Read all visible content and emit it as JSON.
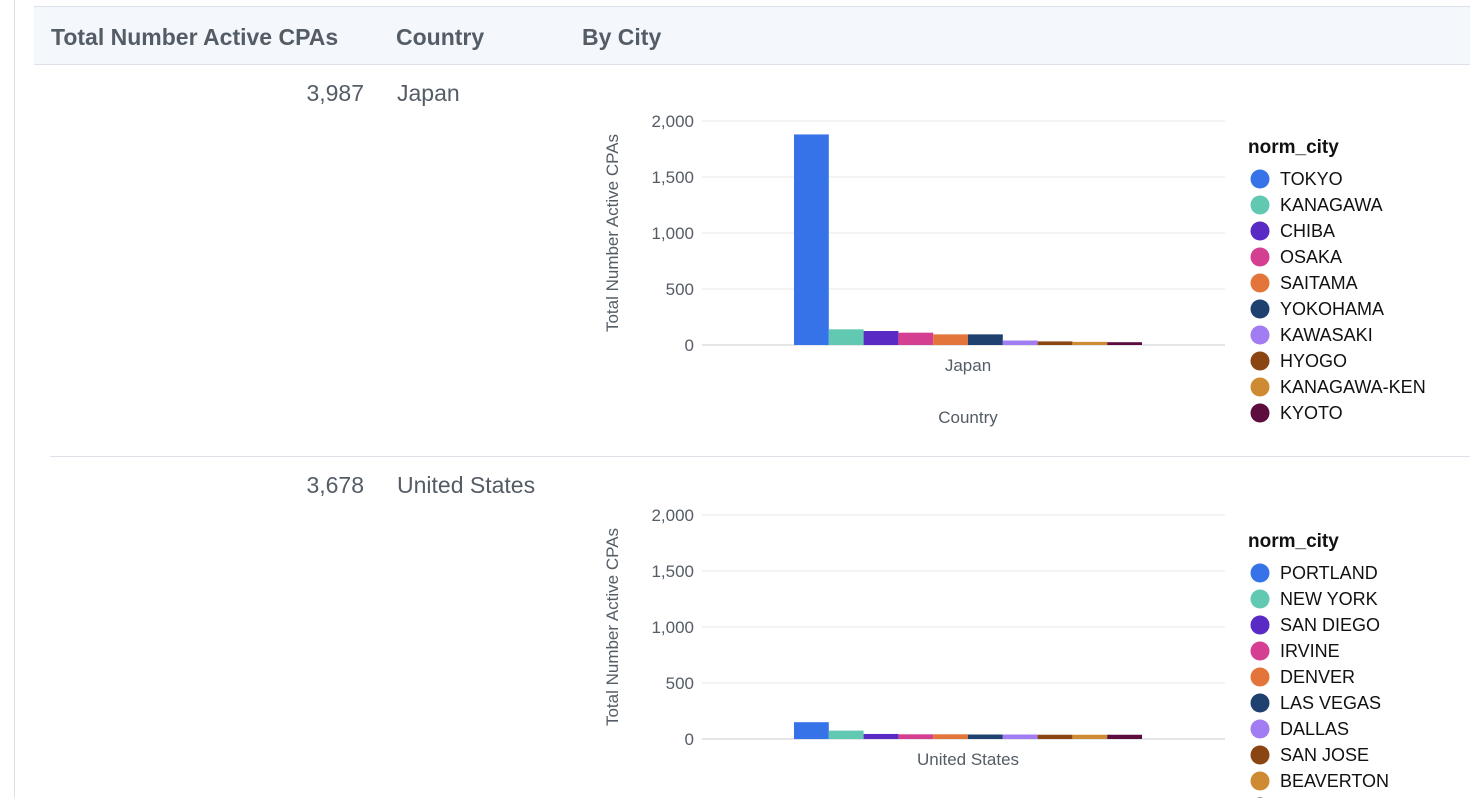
{
  "table": {
    "headers": [
      "Total Number Active CPAs",
      "Country",
      "By City"
    ],
    "rows": [
      {
        "count": "3,987",
        "country": "Japan"
      },
      {
        "count": "3,678",
        "country": "United States"
      }
    ]
  },
  "chart_data": [
    {
      "type": "bar",
      "title": "",
      "xlabel": "Country",
      "ylabel": "Total Number Active CPAs",
      "categories": [
        "Japan"
      ],
      "ylim": [
        0,
        2000
      ],
      "yticks": [
        0,
        500,
        1000,
        1500,
        2000
      ],
      "ytick_labels": [
        "0",
        "500",
        "1,000",
        "1,500",
        "2,000"
      ],
      "grid": true,
      "legend_title": "norm_city",
      "legend_position": "right",
      "series": [
        {
          "name": "TOKYO",
          "values": [
            1880
          ],
          "color": "#3673e8"
        },
        {
          "name": "KANAGAWA",
          "values": [
            140
          ],
          "color": "#61c8b1"
        },
        {
          "name": "CHIBA",
          "values": [
            125
          ],
          "color": "#5a2ac4"
        },
        {
          "name": "OSAKA",
          "values": [
            110
          ],
          "color": "#d43f92"
        },
        {
          "name": "SAITAMA",
          "values": [
            95
          ],
          "color": "#e3743a"
        },
        {
          "name": "YOKOHAMA",
          "values": [
            95
          ],
          "color": "#1f4170"
        },
        {
          "name": "KAWASAKI",
          "values": [
            40
          ],
          "color": "#a27cf2"
        },
        {
          "name": "HYOGO",
          "values": [
            32
          ],
          "color": "#8a4512"
        },
        {
          "name": "KANAGAWA-KEN",
          "values": [
            28
          ],
          "color": "#cf8b33"
        },
        {
          "name": "KYOTO",
          "values": [
            25
          ],
          "color": "#5c0d3d"
        }
      ]
    },
    {
      "type": "bar",
      "title": "",
      "xlabel": "",
      "ylabel": "Total Number Active CPAs",
      "categories": [
        "United States"
      ],
      "ylim": [
        0,
        2000
      ],
      "yticks": [
        0,
        500,
        1000,
        1500,
        2000
      ],
      "ytick_labels": [
        "0",
        "500",
        "1,000",
        "1,500",
        "2,000"
      ],
      "grid": true,
      "legend_title": "norm_city",
      "legend_position": "right",
      "series": [
        {
          "name": "PORTLAND",
          "values": [
            150
          ],
          "color": "#3673e8"
        },
        {
          "name": "NEW YORK",
          "values": [
            75
          ],
          "color": "#61c8b1"
        },
        {
          "name": "SAN DIEGO",
          "values": [
            45
          ],
          "color": "#5a2ac4"
        },
        {
          "name": "IRVINE",
          "values": [
            42
          ],
          "color": "#d43f92"
        },
        {
          "name": "DENVER",
          "values": [
            42
          ],
          "color": "#e3743a"
        },
        {
          "name": "LAS VEGAS",
          "values": [
            40
          ],
          "color": "#1f4170"
        },
        {
          "name": "DALLAS",
          "values": [
            40
          ],
          "color": "#a27cf2"
        },
        {
          "name": "SAN JOSE",
          "values": [
            38
          ],
          "color": "#8a4512"
        },
        {
          "name": "BEAVERTON",
          "values": [
            38
          ],
          "color": "#cf8b33"
        },
        {
          "name": "",
          "values": [
            38
          ],
          "color": "#5c0d3d"
        }
      ]
    }
  ]
}
